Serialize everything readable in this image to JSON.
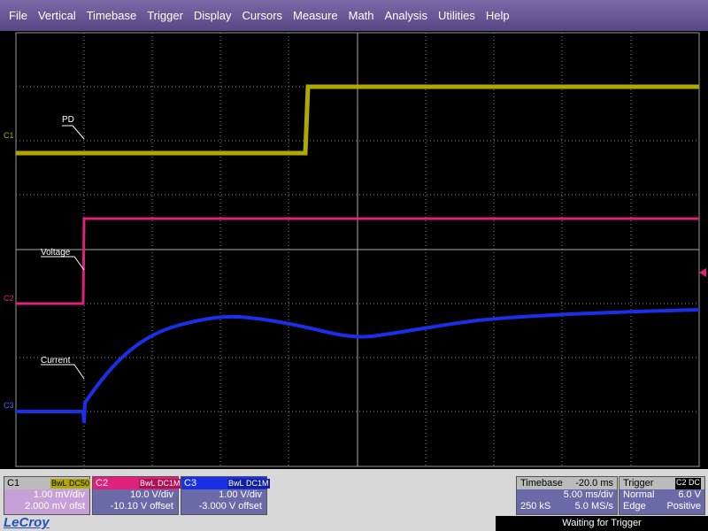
{
  "menu": [
    "File",
    "Vertical",
    "Timebase",
    "Trigger",
    "Display",
    "Cursors",
    "Measure",
    "Math",
    "Analysis",
    "Utilities",
    "Help"
  ],
  "traces": [
    {
      "channel": "C1",
      "label": "PD"
    },
    {
      "channel": "C2",
      "label": "Voltage"
    },
    {
      "channel": "C3",
      "label": "Current"
    }
  ],
  "channels": [
    {
      "name": "C1",
      "bandwidth": "BwL",
      "coupling": "DC50",
      "scale": "1.00 mV/div",
      "offset": "2.000 mV ofst"
    },
    {
      "name": "C2",
      "bandwidth": "BwL",
      "coupling": "DC1M",
      "scale": "10.0 V/div",
      "offset": "-10.10 V offset"
    },
    {
      "name": "C3",
      "bandwidth": "BwL",
      "coupling": "DC1M",
      "scale": "1.00 V/div",
      "offset": "-3.000 V offset"
    }
  ],
  "timebase": {
    "title": "Timebase",
    "delay": "-20.0 ms",
    "scale": "5.00 ms/div",
    "samples": "250 kS",
    "rate": "5.0 MS/s"
  },
  "trigger": {
    "title": "Trigger",
    "source": "C2 DC",
    "mode": "Normal",
    "level": "6.0 V",
    "type": "Edge",
    "slope": "Positive"
  },
  "brand": "LeCroy",
  "status": "Waiting for Trigger"
}
